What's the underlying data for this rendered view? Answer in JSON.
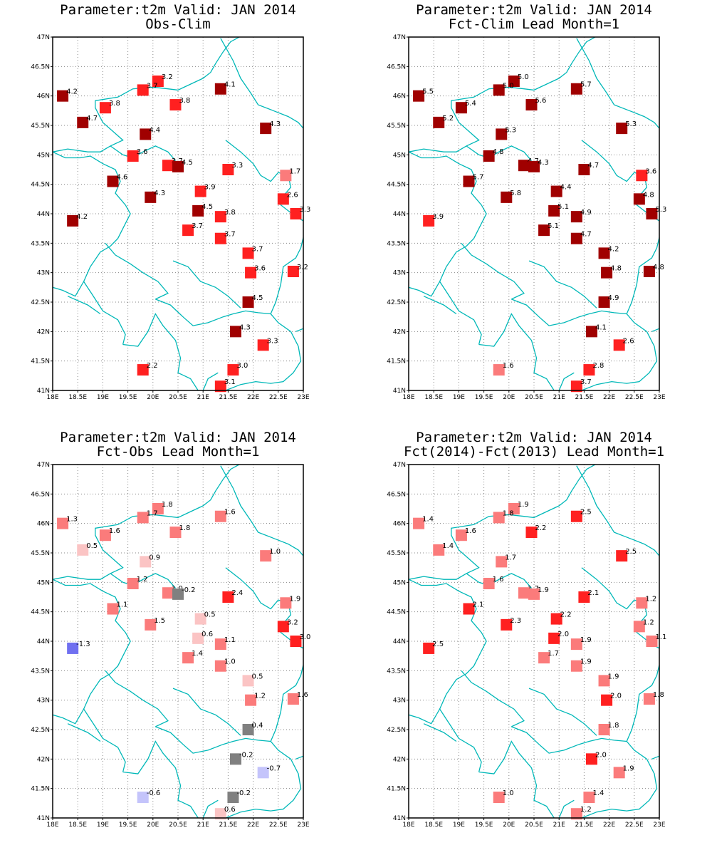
{
  "colors": {
    "border": "#00b8b8",
    "frame": "#000000"
  },
  "axes": {
    "lon": [
      18,
      18.5,
      19,
      19.5,
      20,
      20.5,
      21,
      21.5,
      22,
      22.5,
      23
    ],
    "lat": [
      41,
      41.5,
      42,
      42.5,
      43,
      43.5,
      44,
      44.5,
      45,
      45.5,
      46,
      46.5,
      47
    ],
    "lon_labels": [
      "18E",
      "18.5E",
      "19E",
      "19.5E",
      "20E",
      "20.5E",
      "21E",
      "21.5E",
      "22E",
      "22.5E",
      "23E"
    ],
    "lat_labels": [
      "41N",
      "41.5N",
      "42N",
      "42.5N",
      "43N",
      "43.5N",
      "44N",
      "44.5N",
      "45N",
      "45.5N",
      "46N",
      "46.5N",
      "47N"
    ]
  },
  "stations": [
    [
      18.2,
      46.0
    ],
    [
      20.1,
      46.25
    ],
    [
      19.8,
      46.1
    ],
    [
      21.35,
      46.12
    ],
    [
      19.05,
      45.8
    ],
    [
      20.45,
      45.85
    ],
    [
      18.6,
      45.55
    ],
    [
      19.85,
      45.35
    ],
    [
      22.25,
      45.45
    ],
    [
      19.6,
      44.98
    ],
    [
      20.3,
      44.82
    ],
    [
      20.5,
      44.8
    ],
    [
      21.5,
      44.75
    ],
    [
      22.65,
      44.65
    ],
    [
      19.2,
      44.55
    ],
    [
      20.95,
      44.38
    ],
    [
      19.95,
      44.28
    ],
    [
      22.6,
      44.25
    ],
    [
      20.9,
      44.05
    ],
    [
      21.35,
      43.95
    ],
    [
      22.85,
      44.0
    ],
    [
      18.4,
      43.88
    ],
    [
      20.7,
      43.72
    ],
    [
      21.35,
      43.58
    ],
    [
      21.9,
      43.33
    ],
    [
      21.95,
      43.0
    ],
    [
      22.8,
      43.02
    ],
    [
      21.9,
      42.5
    ],
    [
      21.65,
      42.0
    ],
    [
      22.2,
      41.77
    ],
    [
      19.8,
      41.35
    ],
    [
      21.6,
      41.35
    ],
    [
      21.35,
      41.07
    ]
  ],
  "panels": [
    {
      "title1": "Parameter:t2m Valid: JAN 2014",
      "title2": "Obs-Clim",
      "values": [
        4.2,
        3.2,
        3.7,
        4.1,
        3.8,
        3.8,
        4.7,
        4.4,
        4.3,
        3.6,
        3.7,
        4.5,
        3.3,
        1.7,
        4.6,
        3.9,
        4.3,
        2.6,
        4.5,
        3.8,
        3.3,
        4.2,
        3.7,
        3.7,
        3.7,
        3.6,
        3.2,
        4.5,
        4.3,
        3.3,
        2.2,
        3.0,
        3.1
      ],
      "labels": [
        "4.2",
        "3.2",
        "3.7",
        "4.1",
        "3.8",
        "3.8",
        "4.7",
        "4.4",
        "4.3",
        "3.6",
        "3.7",
        "4.5",
        "3.3",
        "1.7",
        "4.6",
        "3.9",
        "4.3",
        "2.6",
        "4.5",
        "3.8",
        "3.3",
        "4.2",
        "3.7",
        "3.7",
        "3.7",
        "3.6",
        "3.2",
        "4.5",
        "4.3",
        "3.3",
        "2.2",
        "3.0",
        "3.1"
      ]
    },
    {
      "title1": "Parameter:t2m Valid: JAN 2014",
      "title2": "Fct-Clim Lead Month=1",
      "values": [
        5.5,
        5.0,
        5.0,
        5.7,
        5.4,
        5.6,
        5.2,
        5.3,
        5.3,
        4.8,
        4.7,
        4.3,
        4.7,
        3.6,
        5.7,
        4.4,
        5.8,
        4.8,
        5.1,
        4.9,
        5.3,
        3.9,
        5.1,
        4.7,
        4.2,
        4.8,
        4.8,
        4.9,
        4.1,
        2.6,
        1.6,
        2.8,
        3.7
      ],
      "labels": [
        "5.5",
        "5.0",
        "5.0",
        "5.7",
        "5.4",
        "5.6",
        "5.2",
        "5.3",
        "5.3",
        "4.8",
        "4.7",
        "4.3",
        "4.7",
        "3.6",
        "5.7",
        "4.4",
        "5.8",
        "4.8",
        "5.1",
        "4.9",
        "5.3",
        "3.9",
        "5.1",
        "4.7",
        "4.2",
        "4.8",
        "4.8",
        "4.9",
        "4.1",
        "2.6",
        "1.6",
        "2.8",
        "3.7"
      ]
    },
    {
      "title1": "Parameter:t2m Valid: JAN 2014",
      "title2": "Fct-Obs Lead Month=1",
      "values": [
        1.3,
        1.8,
        1.7,
        1.6,
        1.6,
        1.8,
        0.5,
        0.9,
        1.0,
        1.2,
        1.0,
        -0.2,
        2.4,
        1.9,
        1.1,
        0.5,
        1.5,
        3.2,
        0.6,
        1.1,
        3.0,
        -1.3,
        1.4,
        1.0,
        0.5,
        1.2,
        1.6,
        0.4,
        -0.2,
        -0.7,
        -0.6,
        -0.2,
        0.6
      ],
      "labels": [
        "1.3",
        "1.8",
        "1.7",
        "1.6",
        "1.6",
        "1.8",
        "0.5",
        "0.9",
        "1.0",
        "1.2",
        "1.0",
        "-0.2",
        "2.4",
        "1.9",
        "1.1",
        "0.5",
        "1.5",
        "3.2",
        "0.6",
        "1.1",
        "3.0",
        "-1.3",
        "1.4",
        "1.0",
        "0.5",
        "1.2",
        "1.6",
        "0.4",
        "-0.2",
        "-0.7",
        "-0.6",
        "-0.2",
        "0.6"
      ]
    },
    {
      "title1": "Parameter:t2m Valid: JAN 2014",
      "title2": "Fct(2014)-Fct(2013) Lead Month=1",
      "values": [
        1.4,
        1.9,
        1.8,
        2.5,
        1.6,
        2.2,
        1.4,
        1.7,
        2.5,
        1.6,
        1.7,
        1.9,
        2.1,
        1.2,
        2.1,
        2.2,
        2.3,
        1.2,
        2.0,
        1.9,
        1.1,
        2.5,
        1.7,
        1.9,
        1.9,
        2.0,
        1.8,
        1.8,
        2.0,
        1.9,
        1.0,
        1.4,
        1.2
      ],
      "labels": [
        "1.4",
        "1.9",
        "1.8",
        "2.5",
        "1.6",
        "2.2",
        "1.4",
        "1.7",
        "2.5",
        "1.6",
        "1.7",
        "1.9",
        "2.1",
        "1.2",
        "2.1",
        "2.2",
        "2.3",
        "1.2",
        "2.0",
        "1.9",
        "1.1",
        "2.5",
        "1.7",
        "1.9",
        "1.9",
        "2.0",
        "1.8",
        "1.8",
        "2.0",
        "1.9",
        "1.0",
        "1.4",
        "1.2"
      ]
    }
  ]
}
